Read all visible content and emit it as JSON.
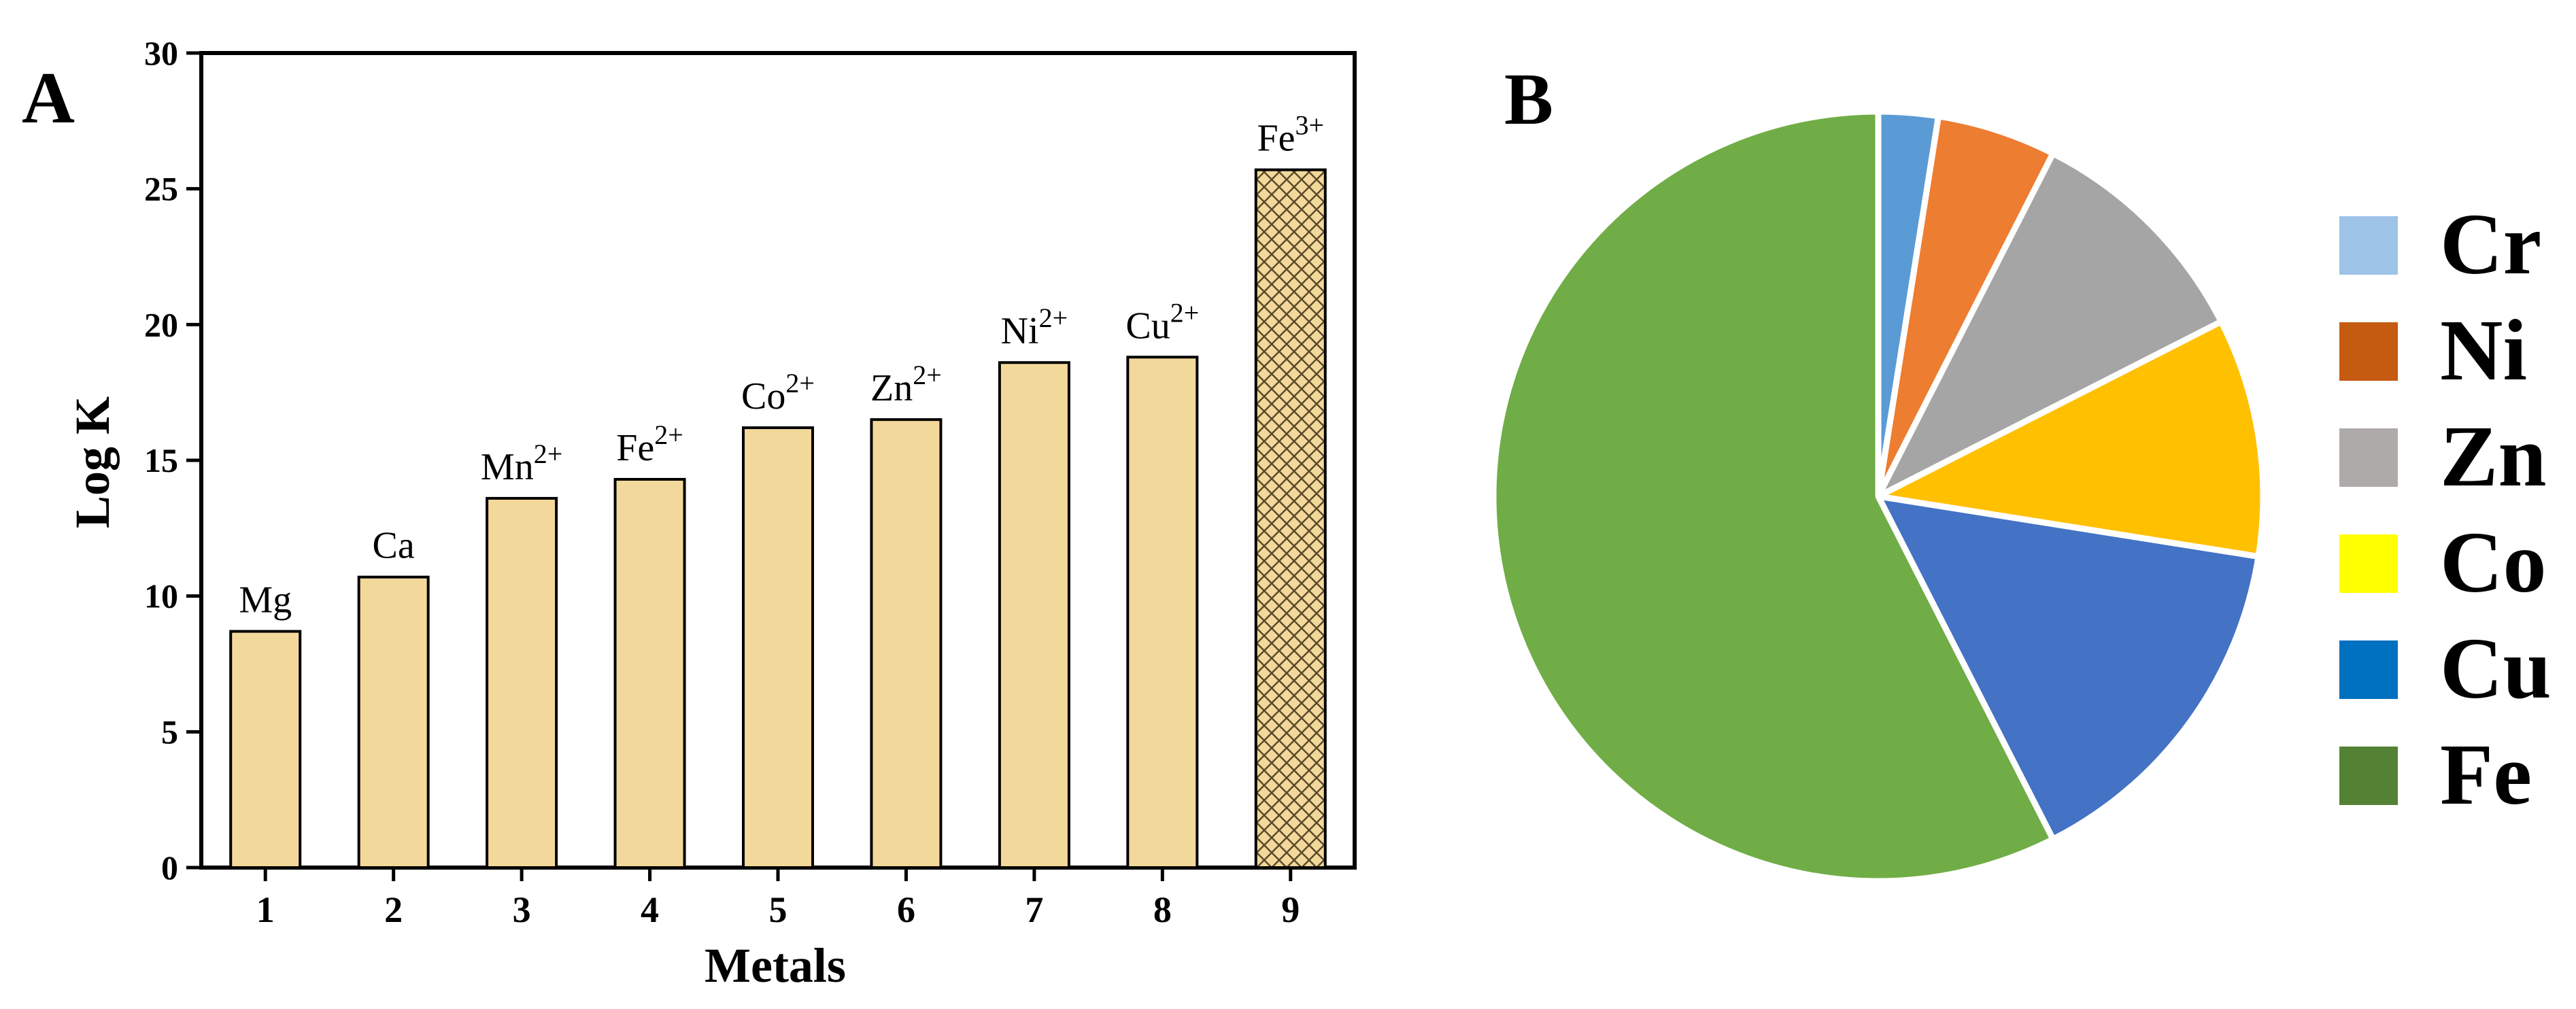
{
  "chart_data": [
    {
      "panel": "A",
      "type": "bar",
      "title": "",
      "xlabel": "Metals",
      "ylabel": "Log K",
      "ylim": [
        0,
        30
      ],
      "yticks": [
        "0",
        "5",
        "10",
        "15",
        "20",
        "25",
        "30"
      ],
      "categories": [
        "1",
        "2",
        "3",
        "4",
        "5",
        "6",
        "7",
        "8",
        "9"
      ],
      "values": [
        8.7,
        10.7,
        13.6,
        14.3,
        16.2,
        16.5,
        18.6,
        18.8,
        25.7
      ],
      "bar_labels": [
        {
          "base": "Mg",
          "sup": ""
        },
        {
          "base": "Ca",
          "sup": ""
        },
        {
          "base": "Mn",
          "sup": "2+"
        },
        {
          "base": "Fe",
          "sup": "2+"
        },
        {
          "base": "Co",
          "sup": "2+"
        },
        {
          "base": "Zn",
          "sup": "2+"
        },
        {
          "base": "Ni",
          "sup": "2+"
        },
        {
          "base": "Cu",
          "sup": "2+"
        },
        {
          "base": "Fe",
          "sup": "3+"
        }
      ],
      "bar_fill": "#F3D89B",
      "highlight_index": 8,
      "grid": false
    },
    {
      "panel": "B",
      "type": "pie",
      "title": "",
      "labels": [
        "Cr",
        "Ni",
        "Zn",
        "Co",
        "Cu",
        "Fe"
      ],
      "values": [
        2.5,
        5,
        10,
        10,
        15,
        57.5
      ],
      "slice_colors": [
        "#5B9BD5",
        "#ED7D31",
        "#A5A5A5",
        "#FFC000",
        "#4472C4",
        "#70AD47"
      ],
      "legend_colors": [
        "#9DC3E6",
        "#C55A11",
        "#AEAAAA",
        "#FFFF00",
        "#0070C0",
        "#548235"
      ],
      "legend_position": "right"
    }
  ]
}
